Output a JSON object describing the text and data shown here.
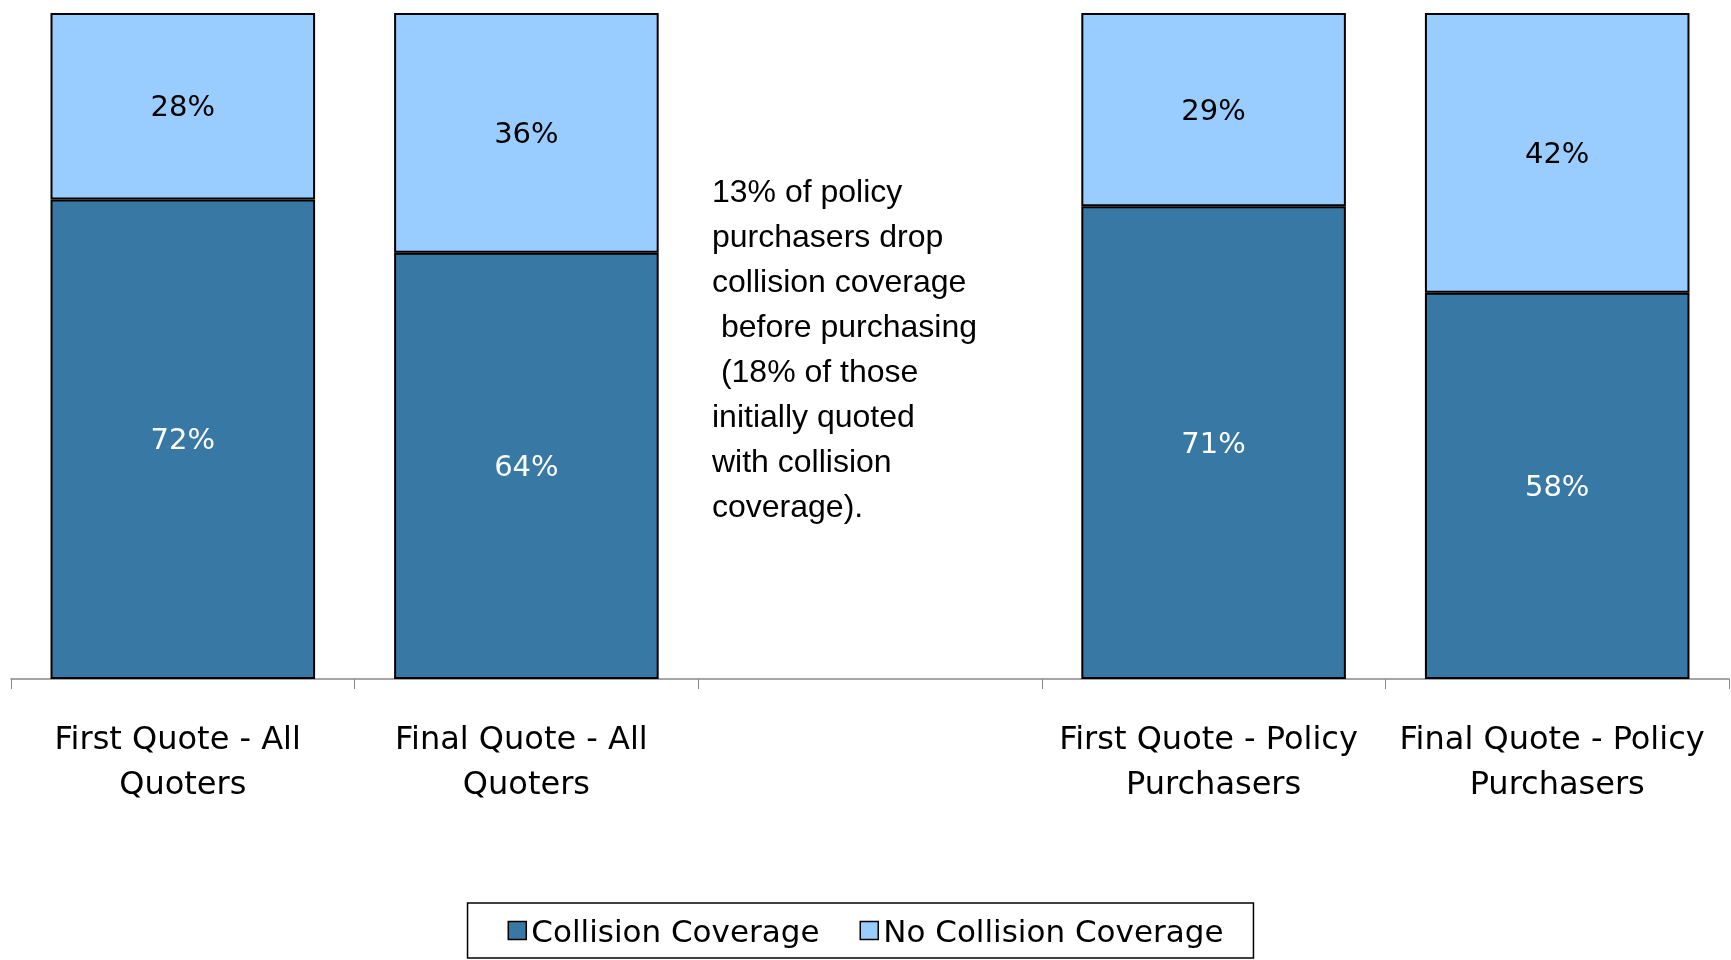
{
  "chart_data": {
    "type": "bar",
    "stacked": true,
    "categories": [
      "First Quote - All Quoters",
      "Final Quote - All Quoters",
      null,
      "First Quote - Policy Purchasers",
      "Final Quote - Policy Purchasers"
    ],
    "series": [
      {
        "name": "Collision Coverage",
        "color": "#3778a4",
        "values": [
          72,
          64,
          null,
          71,
          58
        ],
        "value_labels": [
          "72%",
          "64%",
          null,
          "71%",
          "58%"
        ]
      },
      {
        "name": "No Collision Coverage",
        "color": "#99ccff",
        "values": [
          28,
          36,
          null,
          29,
          42
        ],
        "value_labels": [
          "28%",
          "36%",
          null,
          "29%",
          "42%"
        ]
      }
    ],
    "ylim": [
      0,
      100
    ],
    "tick_labels": "x",
    "legend": "bottom",
    "grid": false,
    "annotations": [
      "13% of policy purchasers drop collision coverage before purchasing (18% of those initially quoted with collision coverage)."
    ]
  }
}
